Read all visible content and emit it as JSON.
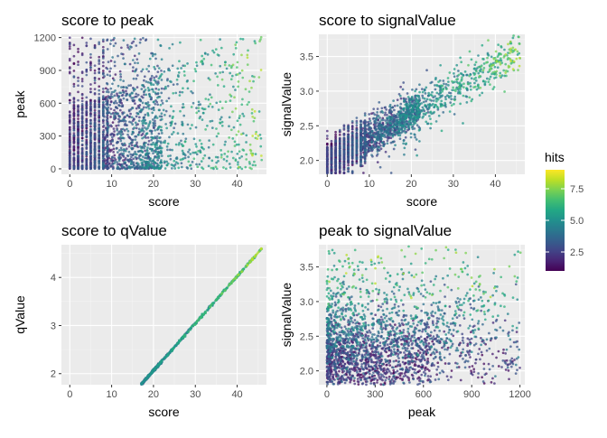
{
  "chart_data": [
    {
      "type": "scatter",
      "title": "score to peak",
      "xlabel": "score",
      "ylabel": "peak",
      "xlim": [
        -2,
        47
      ],
      "ylim": [
        -50,
        1230
      ],
      "x_ticks": [
        0,
        10,
        20,
        30,
        40
      ],
      "y_ticks": [
        0,
        300,
        600,
        900,
        1200
      ],
      "grid": true,
      "color_by": "hits"
    },
    {
      "type": "scatter",
      "title": "score to signalValue",
      "xlabel": "score",
      "ylabel": "signalValue",
      "xlim": [
        -2,
        47
      ],
      "ylim": [
        1.8,
        3.82
      ],
      "x_ticks": [
        0,
        10,
        20,
        30,
        40
      ],
      "y_ticks": [
        2.0,
        2.5,
        3.0,
        3.5
      ],
      "y_tick_labels": [
        "2.0",
        "2.5",
        "3.0",
        "3.5"
      ],
      "grid": true,
      "color_by": "hits"
    },
    {
      "type": "scatter",
      "title": "score to qValue",
      "xlabel": "score",
      "ylabel": "qValue",
      "xlim": [
        -2,
        47
      ],
      "ylim": [
        1.77,
        4.68
      ],
      "x_ticks": [
        0,
        10,
        20,
        30,
        40
      ],
      "y_ticks": [
        2,
        3,
        4
      ],
      "grid": true,
      "color_by": "hits",
      "relation": "qValue rises linearly with score, from about 1.8 at score 17 to about 4.7 at score 47"
    },
    {
      "type": "scatter",
      "title": "peak to signalValue",
      "xlabel": "peak",
      "ylabel": "signalValue",
      "xlim": [
        -50,
        1230
      ],
      "ylim": [
        1.8,
        3.82
      ],
      "x_ticks": [
        0,
        300,
        600,
        900,
        1200
      ],
      "y_ticks": [
        2.0,
        2.5,
        3.0,
        3.5
      ],
      "y_tick_labels": [
        "2.0",
        "2.5",
        "3.0",
        "3.5"
      ],
      "grid": true,
      "color_by": "hits"
    }
  ],
  "legend": {
    "title": "hits",
    "ticks": [
      2.5,
      5.0,
      7.5
    ],
    "tick_labels": [
      "2.5",
      "5.0",
      "7.5"
    ],
    "range": [
      1,
      9
    ],
    "placement": "right",
    "colors": [
      "#440154",
      "#482475",
      "#414487",
      "#355f8d",
      "#2a788e",
      "#21908d",
      "#22a884",
      "#42be71",
      "#7ad151",
      "#bddf26",
      "#fde725"
    ]
  },
  "style": {
    "panel_bg": "#ebebeb",
    "grid_major": "#ffffff"
  }
}
